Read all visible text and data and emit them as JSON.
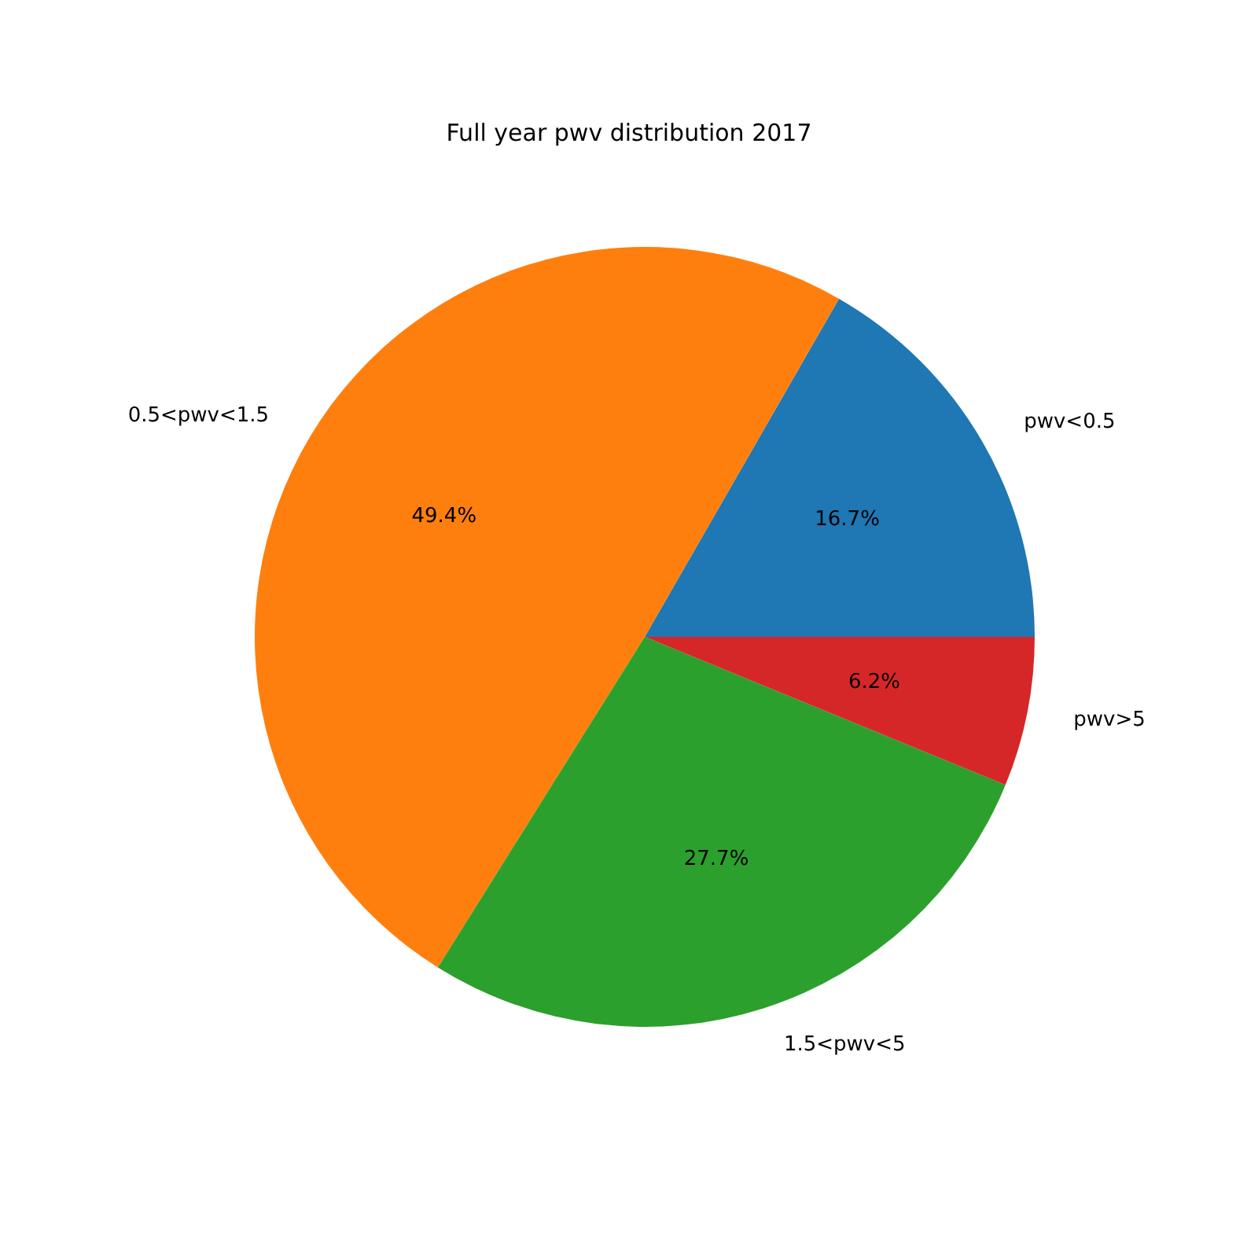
{
  "chart_data": {
    "type": "pie",
    "title": "Full year pwv distribution 2017",
    "categories": [
      "pwv<0.5",
      "0.5<pwv<1.5",
      "1.5<pwv<5",
      "pwv>5"
    ],
    "values": [
      16.7,
      49.4,
      27.7,
      6.2
    ],
    "value_labels": [
      "16.7%",
      "49.4%",
      "27.7%",
      "6.2%"
    ],
    "colors": [
      "#1f77b4",
      "#ff7f0e",
      "#2ca02c",
      "#d62728"
    ],
    "legend": false
  }
}
